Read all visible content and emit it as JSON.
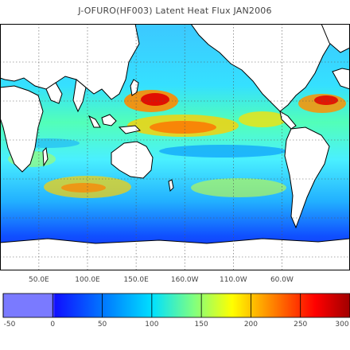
{
  "title": "J-OFURO(HF003) Latent Heat Flux JAN2006",
  "map": {
    "longitude_labels": [
      "50.0E",
      "100.0E",
      "150.0E",
      "160.0W",
      "110.0W",
      "60.0W"
    ],
    "longitude_values": [
      50,
      100,
      150,
      200,
      250,
      300
    ],
    "lon_range": [
      10,
      370
    ],
    "grid": true,
    "land_color": "#ffffff",
    "coastline_color": "#000000"
  },
  "colorbar": {
    "min": -50,
    "max": 300,
    "tick_labels": [
      "-50",
      "0",
      "50",
      "100",
      "150",
      "200",
      "250",
      "300"
    ],
    "tick_values": [
      -50,
      0,
      50,
      100,
      150,
      200,
      250,
      300
    ],
    "colors": [
      "#7a7aff",
      "#1010ff",
      "#0080ff",
      "#00e0ff",
      "#80ff80",
      "#ffff00",
      "#ff8000",
      "#ff0000",
      "#a00000"
    ]
  }
}
